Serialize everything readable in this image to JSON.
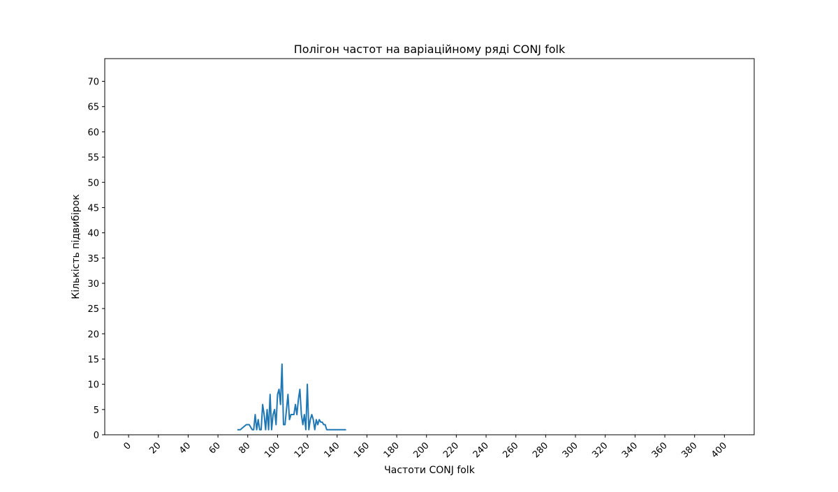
{
  "chart_data": {
    "type": "line",
    "title": "Полігон частот на варіаційному ряді CONJ folk",
    "xlabel": "Частоти CONJ folk",
    "ylabel": "Кількість підвибірок",
    "xlim": [
      -16,
      420
    ],
    "ylim": [
      0,
      74.5
    ],
    "x_ticks": [
      0,
      20,
      40,
      60,
      80,
      100,
      120,
      140,
      160,
      180,
      200,
      220,
      240,
      260,
      280,
      300,
      320,
      340,
      360,
      380,
      400
    ],
    "y_ticks": [
      0,
      5,
      10,
      15,
      20,
      25,
      30,
      35,
      40,
      45,
      50,
      55,
      60,
      65,
      70
    ],
    "x_tick_rotation_deg": 45,
    "grid": false,
    "line_color": "#1f77b4",
    "series": [
      {
        "x": [
          73,
          75,
          77,
          79,
          81,
          83,
          84,
          85,
          86,
          87,
          88,
          89,
          90,
          91,
          92,
          93,
          94,
          95,
          96,
          97,
          98,
          99,
          100,
          101,
          102,
          103,
          104,
          105,
          106,
          107,
          108,
          109,
          110,
          111,
          112,
          113,
          114,
          115,
          116,
          117,
          118,
          119,
          120,
          121,
          122,
          123,
          124,
          125,
          126,
          127,
          128,
          129,
          130,
          131,
          132,
          133,
          135,
          137,
          140,
          143,
          146
        ],
        "y": [
          1,
          1,
          1.5,
          2,
          2,
          1,
          1,
          4,
          1,
          3,
          1,
          1,
          6,
          4,
          1,
          5,
          1,
          8,
          1,
          4,
          5,
          2,
          8,
          9,
          6,
          14,
          2,
          2,
          5,
          8,
          3,
          4,
          4,
          4,
          6,
          4,
          7,
          9,
          4,
          2,
          4,
          1,
          10,
          1,
          3,
          4,
          3,
          1,
          3,
          2,
          3,
          2.5,
          2.5,
          2,
          2,
          1,
          1,
          1,
          1,
          1,
          1
        ]
      }
    ]
  }
}
